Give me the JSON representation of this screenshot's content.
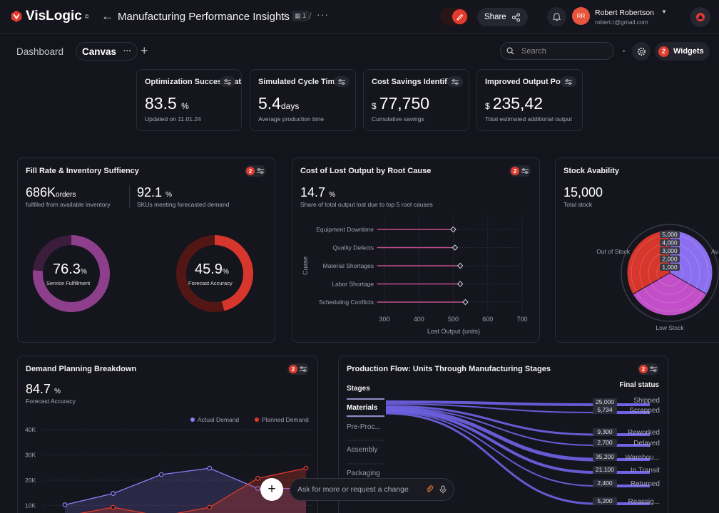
{
  "app": {
    "logo_text": "VisLogic",
    "logo_mark": "©"
  },
  "header": {
    "title": "Manufacturing Performance Insights",
    "crumb_badge": "1",
    "share_label": "Share",
    "user": {
      "initials": "RR",
      "name": "Robert Robertson",
      "email": "robert.r@gmail.com"
    }
  },
  "tabs": {
    "dashboard": "Dashboard",
    "canvas": "Canvas",
    "canvas_more": "···",
    "add": "+"
  },
  "search": {
    "placeholder": "Search"
  },
  "widgets": {
    "badge": "2",
    "label": "Widgets"
  },
  "kpis": [
    {
      "title": "Optimization Success Rate",
      "value": "83.5",
      "unit": "%",
      "currency": "",
      "sub": "Updated on 11.01.24"
    },
    {
      "title": "Simulated Cycle Time",
      "value": "5.4",
      "unit": "days",
      "currency": "",
      "sub": "Average production time"
    },
    {
      "title": "Cost Savings Identified",
      "value": "77,750",
      "unit": "",
      "currency": "$",
      "sub": "Cumulative savings"
    },
    {
      "title": "Improved Output Potential",
      "value": "235,42",
      "unit": "",
      "currency": "$",
      "sub": "Total estimated additional output"
    }
  ],
  "fill_rate": {
    "title": "Fill Rate & Inventory Suffiency",
    "badge": "2",
    "m1_value": "686K",
    "m1_unit": "orders",
    "m1_sub": "fulfilled from available inventory",
    "m2_value": "92.1",
    "m2_unit": "%",
    "m2_sub": "SKUs meeting forecasted demand",
    "donut1": {
      "value": "76.3",
      "unit": "%",
      "label": "Service Fulfillment",
      "fraction": 0.763,
      "color": "#8e3f8c",
      "track": "#3a1e3c"
    },
    "donut2": {
      "value": "45.9",
      "unit": "%",
      "label": "Forecast Accuracy",
      "fraction": 0.459,
      "color": "#d6362b",
      "track": "#521714"
    }
  },
  "lost_output": {
    "title": "Cost of Lost Output by Root Cause",
    "badge": "2",
    "value": "14.7",
    "unit": "%",
    "sub": "Share of total output lost due to top 5 root causes"
  },
  "stock": {
    "title": "Stock Avability",
    "value": "15,000",
    "sub": "Total stock"
  },
  "demand": {
    "title": "Demand Planning Breakdown",
    "badge": "2",
    "value": "84.7",
    "unit": "%",
    "sub": "Forecast Accuracy"
  },
  "flow": {
    "title": "Production Flow: Units Through Manufacturing Stages",
    "badge": "2",
    "stages_header": "Stages",
    "final_header": "Final status",
    "stages": [
      "Materials",
      "Pre-Proc...",
      "Assembly",
      "Packaging"
    ]
  },
  "chat": {
    "plus": "+",
    "placeholder": "Ask for more or request a change"
  },
  "chart_data": [
    {
      "type": "bar",
      "orientation": "horizontal",
      "style": "lollipop",
      "categories": [
        "Equipment Downtime",
        "Quality Defects",
        "Material Shortages",
        "Labor Shortage",
        "Scheduling Conflicts"
      ],
      "values": [
        500,
        505,
        520,
        520,
        535
      ],
      "xlabel": "Lost Output (units)",
      "ylabel": "Cuase",
      "xlim": [
        300,
        700
      ],
      "xticks": [
        300,
        400,
        500,
        600,
        700
      ],
      "color": "#c2528f"
    },
    {
      "type": "pie",
      "categories": [
        "Available",
        "Low Stock",
        "Out of Stock"
      ],
      "labels_shown": [
        "Av",
        "Low Stock",
        "Out of Stock"
      ],
      "values": [
        5000,
        5000,
        5000
      ],
      "colors": [
        "#8b6ff0",
        "#c24fc7",
        "#d6362b"
      ],
      "radial_ticks": [
        "5,000",
        "4,000",
        "3,000",
        "2,000",
        "1,000"
      ]
    },
    {
      "type": "area",
      "series": [
        {
          "name": "Actual Demand",
          "color": "#8b7ff5",
          "values": [
            10500,
            15000,
            22500,
            25000,
            17000,
            17000
          ]
        },
        {
          "name": "Planned Demand",
          "color": "#e0392c",
          "values": [
            6000,
            9500,
            6000,
            9500,
            21000,
            25000
          ]
        }
      ],
      "yticks": [
        "40K",
        "30K",
        "20K",
        "10K"
      ],
      "ylim": [
        5000,
        40000
      ]
    },
    {
      "type": "sankey",
      "source": "Materials",
      "targets": [
        {
          "label": "Shipped",
          "value": "25,000"
        },
        {
          "label": "Scrapped",
          "value": "5,734"
        },
        {
          "label": "Reworked",
          "value": "9,300"
        },
        {
          "label": "Delayed",
          "value": "2,700"
        },
        {
          "label": "Warehou...",
          "value": "35,200"
        },
        {
          "label": "In Transit",
          "value": "21,100"
        },
        {
          "label": "Returned",
          "value": "2,400"
        },
        {
          "label": "Reassig...",
          "value": "5,200"
        }
      ]
    }
  ]
}
